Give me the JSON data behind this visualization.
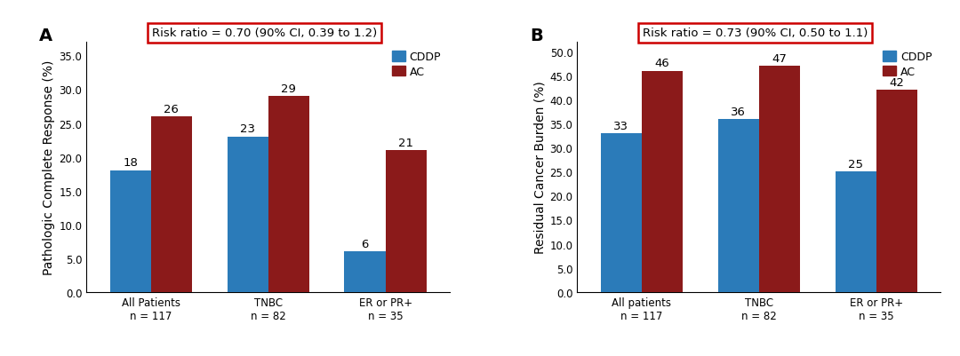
{
  "panel_A": {
    "label": "A",
    "title": "Risk ratio = 0.70 (90% CI, 0.39 to 1.2)",
    "ylabel": "Pathologic Complete Response (%)",
    "categories": [
      "All Patients\nn = 117",
      "TNBC\nn = 82",
      "ER or PR+\nn = 35"
    ],
    "cddp_values": [
      18,
      23,
      6
    ],
    "ac_values": [
      26,
      29,
      21
    ],
    "ylim": [
      0,
      37
    ],
    "yticks": [
      0.0,
      5.0,
      10.0,
      15.0,
      20.0,
      25.0,
      30.0,
      35.0
    ]
  },
  "panel_B": {
    "label": "B",
    "title": "Risk ratio = 0.73 (90% CI, 0.50 to 1.1)",
    "ylabel": "Residual Cancer Burden (%)",
    "categories": [
      "All patients\nn = 117",
      "TNBC\nn = 82",
      "ER or PR+\nn = 35"
    ],
    "cddp_values": [
      33,
      36,
      25
    ],
    "ac_values": [
      46,
      47,
      42
    ],
    "ylim": [
      0,
      52
    ],
    "yticks": [
      0.0,
      5.0,
      10.0,
      15.0,
      20.0,
      25.0,
      30.0,
      35.0,
      40.0,
      45.0,
      50.0
    ]
  },
  "cddp_color": "#2B7BB9",
  "ac_color": "#8B1A1A",
  "bar_width": 0.35,
  "legend_labels": [
    "CDDP",
    "AC"
  ],
  "title_box_color": "#CC0000",
  "title_fontsize": 9.5,
  "ylabel_fontsize": 10,
  "tick_fontsize": 8.5,
  "bar_label_fontsize": 9.5,
  "panel_label_fontsize": 14,
  "legend_fontsize": 9,
  "background_color": "#FFFFFF"
}
